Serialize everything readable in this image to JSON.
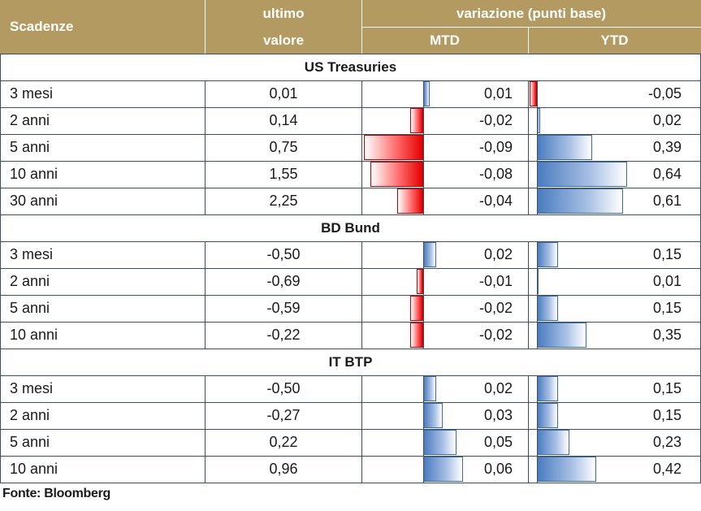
{
  "header": {
    "col_scadenze": "Scadenze",
    "col_ultimo_line1": "ultimo",
    "col_ultimo_line2": "valore",
    "col_variazione": "variazione (punti base)",
    "col_mtd": "MTD",
    "col_ytd": "YTD"
  },
  "colors": {
    "header_bg": "#b39a60",
    "negative_bar": "#e60000",
    "positive_bar": "#4a7cc0",
    "grid": "#3d4f63"
  },
  "sections": [
    {
      "title": "US Treasuries",
      "rows": [
        {
          "label": "3 mesi",
          "ultimo": "0,01",
          "mtd": "0,01",
          "ytd": "-0,05"
        },
        {
          "label": "2 anni",
          "ultimo": "0,14",
          "mtd": "-0,02",
          "ytd": "0,02"
        },
        {
          "label": "5 anni",
          "ultimo": "0,75",
          "mtd": "-0,09",
          "ytd": "0,39"
        },
        {
          "label": "10 anni",
          "ultimo": "1,55",
          "mtd": "-0,08",
          "ytd": "0,64"
        },
        {
          "label": "30 anni",
          "ultimo": "2,25",
          "mtd": "-0,04",
          "ytd": "0,61"
        }
      ]
    },
    {
      "title": "BD Bund",
      "rows": [
        {
          "label": "3 mesi",
          "ultimo": "-0,50",
          "mtd": "0,02",
          "ytd": "0,15"
        },
        {
          "label": "2 anni",
          "ultimo": "-0,69",
          "mtd": "-0,01",
          "ytd": "0,01"
        },
        {
          "label": "5 anni",
          "ultimo": "-0,59",
          "mtd": "-0,02",
          "ytd": "0,15"
        },
        {
          "label": "10 anni",
          "ultimo": "-0,22",
          "mtd": "-0,02",
          "ytd": "0,35"
        }
      ]
    },
    {
      "title": "IT BTP",
      "rows": [
        {
          "label": "3 mesi",
          "ultimo": "-0,50",
          "mtd": "0,02",
          "ytd": "0,15"
        },
        {
          "label": "2 anni",
          "ultimo": "-0,27",
          "mtd": "0,03",
          "ytd": "0,15"
        },
        {
          "label": "5 anni",
          "ultimo": "0,22",
          "mtd": "0,05",
          "ytd": "0,23"
        },
        {
          "label": "10 anni",
          "ultimo": "0,96",
          "mtd": "0,06",
          "ytd": "0,42"
        }
      ]
    }
  ],
  "footer": "Fonte: Bloomberg"
}
